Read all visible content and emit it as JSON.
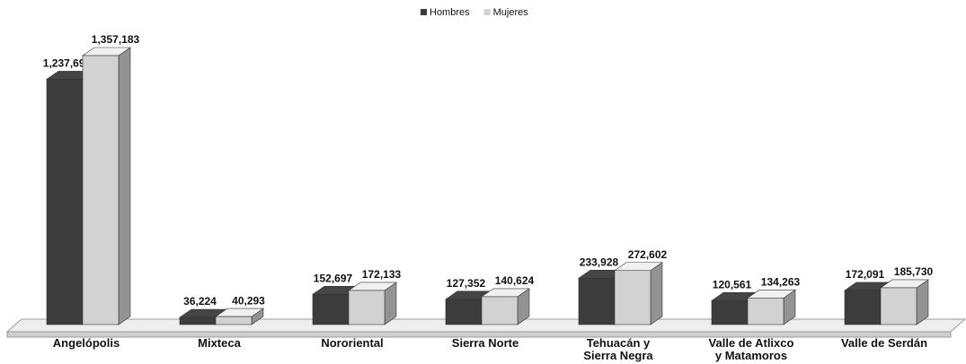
{
  "chart_data": {
    "type": "bar3d",
    "categories": [
      "Angelópolis",
      "Mixteca",
      "Nororiental",
      "Sierra Norte",
      "Tehuacán y\nSierra Negra",
      "Valle de Atlixco\ny Matamoros",
      "Valle de Serdán"
    ],
    "series": [
      {
        "name": "Hombres",
        "color": "#3c3c3c",
        "values": [
          1237695,
          36224,
          152697,
          127352,
          233928,
          120561,
          172091
        ],
        "value_labels": [
          "1,237,695",
          "36,224",
          "152,697",
          "127,352",
          "233,928",
          "120,561",
          "172,091"
        ]
      },
      {
        "name": "Mujeres",
        "color": "#d2d2d2",
        "values": [
          1357183,
          40293,
          172133,
          140624,
          272602,
          134263,
          185730
        ],
        "value_labels": [
          "1,357,183",
          "40,293",
          "172,133",
          "140,624",
          "272,602",
          "134,263",
          "185,730"
        ]
      }
    ],
    "legend": "top"
  }
}
